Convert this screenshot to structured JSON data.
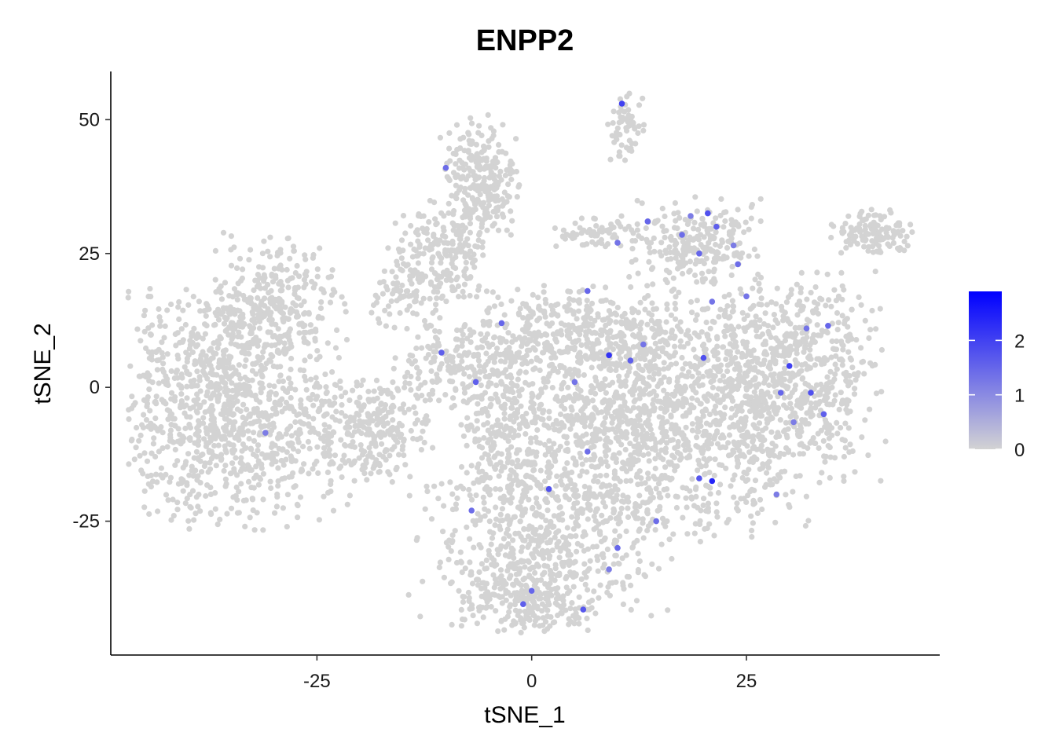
{
  "chart_data": {
    "type": "scatter",
    "title": "ENPP2",
    "xlabel": "tSNE_1",
    "ylabel": "tSNE_2",
    "xlim": [
      -49,
      47.5
    ],
    "ylim": [
      -50,
      59
    ],
    "xticks": [
      -25,
      0,
      25
    ],
    "yticks": [
      -25,
      0,
      25,
      50
    ],
    "xtick_labels": [
      "-25",
      "0",
      "25"
    ],
    "ytick_labels": [
      "-25",
      "0",
      "25",
      "50"
    ],
    "grid": false,
    "legend": {
      "position": "right",
      "type": "colorbar",
      "ticks": [
        0,
        1,
        2
      ],
      "tick_labels": [
        "0",
        "1",
        "2"
      ],
      "range": [
        0,
        2.9
      ],
      "color_low": "#d3d3d3",
      "color_high": "#0000ff"
    },
    "clusters": [
      {
        "name": "left-blob",
        "cx": -35,
        "cy": -3,
        "sx": 6.5,
        "sy": 11,
        "n": 1100
      },
      {
        "name": "left-top",
        "cx": -30,
        "cy": 16,
        "sx": 3.5,
        "sy": 6,
        "n": 250
      },
      {
        "name": "mid-left-blob",
        "cx": -18.5,
        "cy": -8,
        "sx": 3.5,
        "sy": 4.5,
        "n": 260
      },
      {
        "name": "upper-strand-top",
        "cx": -6,
        "cy": 38,
        "sx": 2.2,
        "sy": 6,
        "n": 260
      },
      {
        "name": "upper-strand-mid",
        "cx": -11,
        "cy": 24,
        "sx": 3,
        "sy": 5,
        "n": 200
      },
      {
        "name": "upper-strand-low",
        "cx": -15,
        "cy": 17,
        "sx": 2,
        "sy": 3,
        "n": 60
      },
      {
        "name": "mid-strand",
        "cx": -8,
        "cy": 4,
        "sx": 4,
        "sy": 3.5,
        "n": 180
      },
      {
        "name": "top-small-island",
        "cx": 11,
        "cy": 49,
        "sx": 1,
        "sy": 3,
        "n": 55
      },
      {
        "name": "right-small-island",
        "cx": 39.5,
        "cy": 29,
        "sx": 2.2,
        "sy": 2,
        "n": 130
      },
      {
        "name": "top-right-arm",
        "cx": 19,
        "cy": 27,
        "sx": 3.5,
        "sy": 4,
        "n": 250
      },
      {
        "name": "top-arm-left",
        "cx": 7,
        "cy": 29,
        "sx": 2.5,
        "sy": 1.5,
        "n": 60
      },
      {
        "name": "right-lobe",
        "cx": 30,
        "cy": 2,
        "sx": 5,
        "sy": 9,
        "n": 700
      },
      {
        "name": "central-main",
        "cx": 13,
        "cy": -5,
        "sx": 9,
        "sy": 11,
        "n": 1500
      },
      {
        "name": "center-upper",
        "cx": 5,
        "cy": 10,
        "sx": 6,
        "sy": 4,
        "n": 300
      },
      {
        "name": "lower-left",
        "cx": 1,
        "cy": -30,
        "sx": 7,
        "sy": 7,
        "n": 500
      },
      {
        "name": "bottom",
        "cx": -1,
        "cy": -40,
        "sx": 4,
        "sy": 3,
        "n": 200
      },
      {
        "name": "left-of-center",
        "cx": -3,
        "cy": -10,
        "sx": 3,
        "sy": 6,
        "n": 200
      }
    ],
    "expressing_points": [
      {
        "x": 10.5,
        "y": 53,
        "v": 2.0
      },
      {
        "x": -10,
        "y": 41,
        "v": 1.4
      },
      {
        "x": 13.5,
        "y": 31,
        "v": 1.5
      },
      {
        "x": 18.5,
        "y": 32,
        "v": 1.2
      },
      {
        "x": 20.5,
        "y": 32.5,
        "v": 1.8
      },
      {
        "x": 21.5,
        "y": 30,
        "v": 1.6
      },
      {
        "x": 17.5,
        "y": 28.5,
        "v": 1.4
      },
      {
        "x": 10,
        "y": 27,
        "v": 1.3
      },
      {
        "x": 19.5,
        "y": 25,
        "v": 1.5
      },
      {
        "x": 23.5,
        "y": 26.5,
        "v": 1.2
      },
      {
        "x": 24,
        "y": 23,
        "v": 1.4
      },
      {
        "x": 25,
        "y": 17,
        "v": 1.3
      },
      {
        "x": 21,
        "y": 16,
        "v": 1.3
      },
      {
        "x": 6.5,
        "y": 18,
        "v": 1.5
      },
      {
        "x": -3.5,
        "y": 12,
        "v": 1.5
      },
      {
        "x": 9,
        "y": 6,
        "v": 2.2
      },
      {
        "x": 11.5,
        "y": 5,
        "v": 1.6
      },
      {
        "x": 13,
        "y": 8,
        "v": 1.3
      },
      {
        "x": 20,
        "y": 5.5,
        "v": 1.8
      },
      {
        "x": 32,
        "y": 11,
        "v": 1.3
      },
      {
        "x": 34.5,
        "y": 11.5,
        "v": 1.5
      },
      {
        "x": 30,
        "y": 4,
        "v": 2.0
      },
      {
        "x": 29,
        "y": -1,
        "v": 1.5
      },
      {
        "x": 32.5,
        "y": -1,
        "v": 1.8
      },
      {
        "x": 34,
        "y": -5,
        "v": 1.6
      },
      {
        "x": 30.5,
        "y": -6.5,
        "v": 1.2
      },
      {
        "x": 5,
        "y": 1,
        "v": 1.3
      },
      {
        "x": -10.5,
        "y": 6.5,
        "v": 1.6
      },
      {
        "x": -6.5,
        "y": 1,
        "v": 1.6
      },
      {
        "x": 6.5,
        "y": -12,
        "v": 1.4
      },
      {
        "x": 2,
        "y": -19,
        "v": 1.8
      },
      {
        "x": 19.5,
        "y": -17,
        "v": 1.7
      },
      {
        "x": 21,
        "y": -17.5,
        "v": 2.4
      },
      {
        "x": 28.5,
        "y": -20,
        "v": 1.2
      },
      {
        "x": -7,
        "y": -23,
        "v": 1.4
      },
      {
        "x": 14.5,
        "y": -25,
        "v": 1.4
      },
      {
        "x": 10,
        "y": -30,
        "v": 1.5
      },
      {
        "x": 9,
        "y": -34,
        "v": 1.2
      },
      {
        "x": 0,
        "y": -38,
        "v": 1.5
      },
      {
        "x": -1,
        "y": -40.5,
        "v": 1.6
      },
      {
        "x": 6,
        "y": -41.5,
        "v": 1.7
      },
      {
        "x": -31,
        "y": -8.5,
        "v": 1.2
      }
    ]
  }
}
